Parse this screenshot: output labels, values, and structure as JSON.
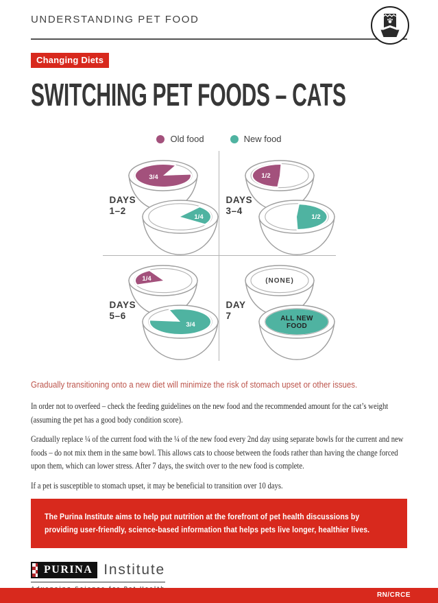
{
  "header": {
    "title": "UNDERSTANDING PET FOOD",
    "icon": "pet-food-bag-and-bowl"
  },
  "badge": "Changing Diets",
  "title": "SWITCHING PET FOODS – CATS",
  "legend": {
    "old": {
      "label": "Old food",
      "color": "#A3517C"
    },
    "new": {
      "label": "New food",
      "color": "#4FB3A1"
    }
  },
  "diagram": {
    "quadrants": [
      {
        "days_label": "DAYS",
        "days_range": "1–2",
        "top_bowl": {
          "food": "old",
          "portion": "3/4"
        },
        "bottom_bowl": {
          "food": "new",
          "portion": "1/4"
        }
      },
      {
        "days_label": "DAYS",
        "days_range": "3–4",
        "top_bowl": {
          "food": "old",
          "portion": "1/2"
        },
        "bottom_bowl": {
          "food": "new",
          "portion": "1/2"
        }
      },
      {
        "days_label": "DAYS",
        "days_range": "5–6",
        "top_bowl": {
          "food": "old",
          "portion": "1/4"
        },
        "bottom_bowl": {
          "food": "new",
          "portion": "3/4"
        }
      },
      {
        "days_label": "DAY",
        "days_range": "7",
        "top_bowl": {
          "food": "old",
          "portion": "none",
          "empty_label": "(NONE)"
        },
        "bottom_bowl": {
          "food": "new",
          "portion": "full",
          "full_label": "ALL NEW\nFOOD"
        }
      }
    ]
  },
  "intro": "Gradually transitioning onto a new diet will minimize the risk of stomach upset or other issues.",
  "paragraphs": [
    "In order not to overfeed – check the feeding guidelines on the new food and the recommended amount for the cat’s weight (assuming the pet has a good body condition score).",
    "Gradually replace ¼ of the current food with the ¼ of the new food every 2nd day using separate bowls for the current and new foods – do not mix them in the same bowl. This allows cats to choose between the foods rather than having the change forced upon them, which can lower stress. After 7 days, the switch over to the new food is complete.",
    "If a pet is susceptible to stomach upset, it may be beneficial to transition over 10 days."
  ],
  "banner": {
    "lines": [
      "The Purina Institute aims to help put nutrition at the forefront of pet health discussions by",
      "providing user-friendly, science-based information that helps pets live longer, healthier lives."
    ],
    "color": "#D8291D"
  },
  "footer": {
    "brand": "PURINA",
    "brand_suffix": "Institute",
    "tagline": "Advancing Science for Pet Health",
    "code": "RN/CRCE"
  }
}
